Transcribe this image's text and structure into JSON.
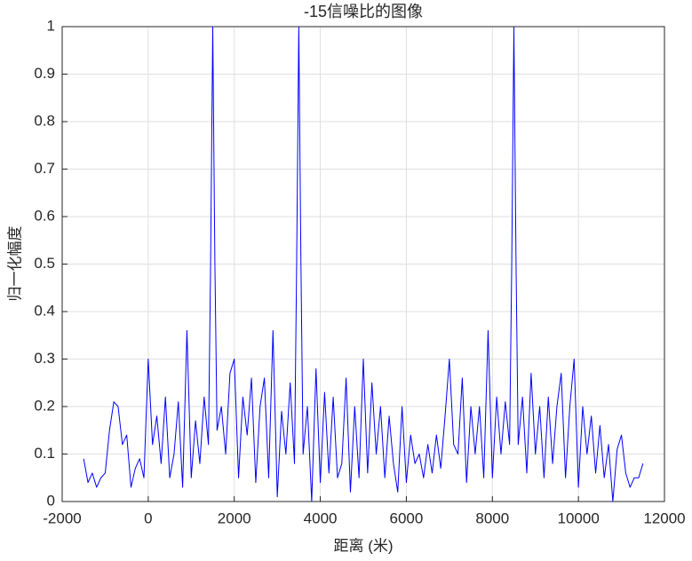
{
  "chart_data": {
    "type": "line",
    "title": "-15信噪比的图像",
    "x_label": "距离 (米)",
    "y_label": "归一化幅度",
    "x": [
      -1500,
      -1400,
      -1300,
      -1200,
      -1100,
      -1000,
      -900,
      -800,
      -700,
      -600,
      -500,
      -400,
      -300,
      -200,
      -100,
      0,
      100,
      200,
      300,
      400,
      500,
      600,
      700,
      800,
      900,
      1000,
      1100,
      1200,
      1300,
      1400,
      1450,
      1500,
      1550,
      1600,
      1700,
      1800,
      1900,
      2000,
      2100,
      2200,
      2300,
      2400,
      2500,
      2600,
      2700,
      2800,
      2900,
      3000,
      3100,
      3200,
      3300,
      3400,
      3450,
      3500,
      3550,
      3600,
      3700,
      3800,
      3900,
      4000,
      4100,
      4200,
      4300,
      4400,
      4500,
      4600,
      4700,
      4800,
      4900,
      5000,
      5100,
      5200,
      5300,
      5400,
      5500,
      5600,
      5700,
      5800,
      5900,
      6000,
      6100,
      6200,
      6300,
      6400,
      6500,
      6600,
      6700,
      6800,
      6900,
      7000,
      7100,
      7200,
      7300,
      7400,
      7500,
      7600,
      7700,
      7800,
      7900,
      8000,
      8100,
      8200,
      8300,
      8400,
      8450,
      8500,
      8550,
      8600,
      8700,
      8800,
      8900,
      9000,
      9100,
      9200,
      9300,
      9400,
      9500,
      9600,
      9700,
      9800,
      9900,
      10000,
      10100,
      10200,
      10300,
      10400,
      10500,
      10600,
      10700,
      10800,
      10900,
      11000,
      11100,
      11200,
      11300,
      11400,
      11500
    ],
    "series": [
      {
        "color": "#0000ff",
        "values": [
          0.09,
          0.04,
          0.06,
          0.03,
          0.05,
          0.06,
          0.15,
          0.21,
          0.2,
          0.12,
          0.14,
          0.03,
          0.07,
          0.09,
          0.05,
          0.3,
          0.12,
          0.18,
          0.08,
          0.22,
          0.05,
          0.1,
          0.21,
          0.03,
          0.36,
          0.05,
          0.17,
          0.08,
          0.22,
          0.12,
          0.5,
          1,
          0.5,
          0.15,
          0.2,
          0.1,
          0.27,
          0.3,
          0.05,
          0.22,
          0.14,
          0.26,
          0.04,
          0.2,
          0.26,
          0.05,
          0.36,
          0.01,
          0.19,
          0.1,
          0.25,
          0.08,
          0.5,
          1,
          0.5,
          0.1,
          0.2,
          0,
          0.28,
          0.04,
          0.23,
          0.06,
          0.22,
          0.05,
          0.08,
          0.26,
          0.02,
          0.2,
          0.05,
          0.3,
          0.06,
          0.25,
          0.1,
          0.2,
          0.05,
          0.18,
          0.08,
          0.02,
          0.2,
          0.04,
          0.14,
          0.08,
          0.1,
          0.05,
          0.12,
          0.06,
          0.14,
          0.07,
          0.18,
          0.3,
          0.12,
          0.1,
          0.26,
          0.04,
          0.2,
          0.1,
          0.2,
          0.05,
          0.36,
          0.05,
          0.22,
          0.1,
          0.21,
          0.12,
          0.5,
          1,
          0.5,
          0.12,
          0.22,
          0.06,
          0.27,
          0.1,
          0.2,
          0.05,
          0.22,
          0.08,
          0.2,
          0.27,
          0.05,
          0.2,
          0.3,
          0.03,
          0.2,
          0.1,
          0.18,
          0.06,
          0.16,
          0.05,
          0.12,
          0,
          0.11,
          0.14,
          0.06,
          0.03,
          0.05,
          0.05,
          0.08
        ]
      }
    ],
    "xlim": [
      -2000,
      12000
    ],
    "xticks": [
      -2000,
      0,
      2000,
      4000,
      6000,
      8000,
      10000,
      12000
    ],
    "ylim": [
      0,
      1
    ],
    "yticks": [
      0,
      0.1,
      0.2,
      0.3,
      0.4,
      0.5,
      0.6,
      0.7,
      0.8,
      0.9,
      1
    ],
    "grid": true
  }
}
